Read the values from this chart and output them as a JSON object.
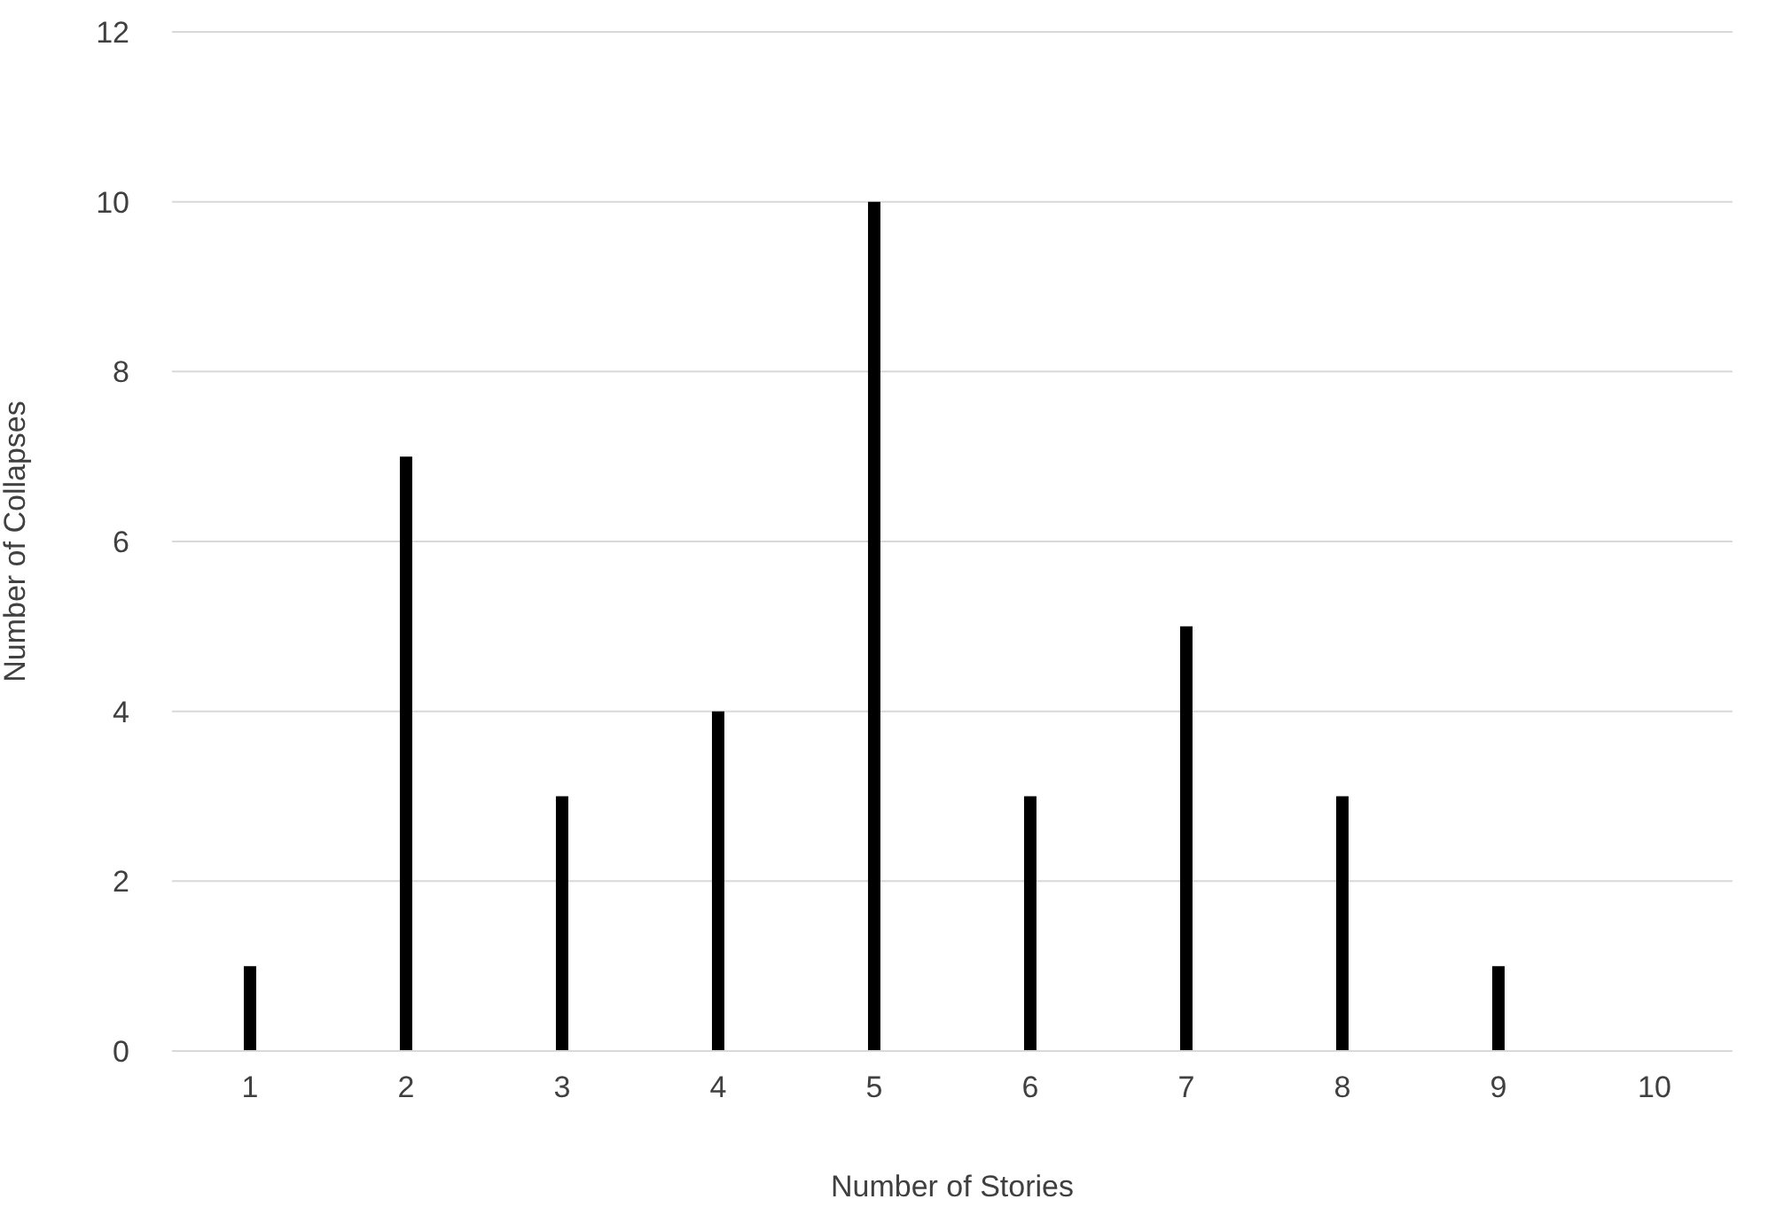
{
  "chart_data": {
    "type": "bar",
    "xlabel": "Number of Stories",
    "ylabel": "Number of Collapses",
    "categories": [
      "1",
      "2",
      "3",
      "4",
      "5",
      "6",
      "7",
      "8",
      "9",
      "10"
    ],
    "values": [
      1,
      7,
      3,
      4,
      10,
      3,
      5,
      3,
      1,
      0
    ],
    "color": "#000000",
    "ylim": [
      0,
      12
    ],
    "yticks": [
      0,
      2,
      4,
      6,
      8,
      10,
      12
    ],
    "grid": "y"
  }
}
